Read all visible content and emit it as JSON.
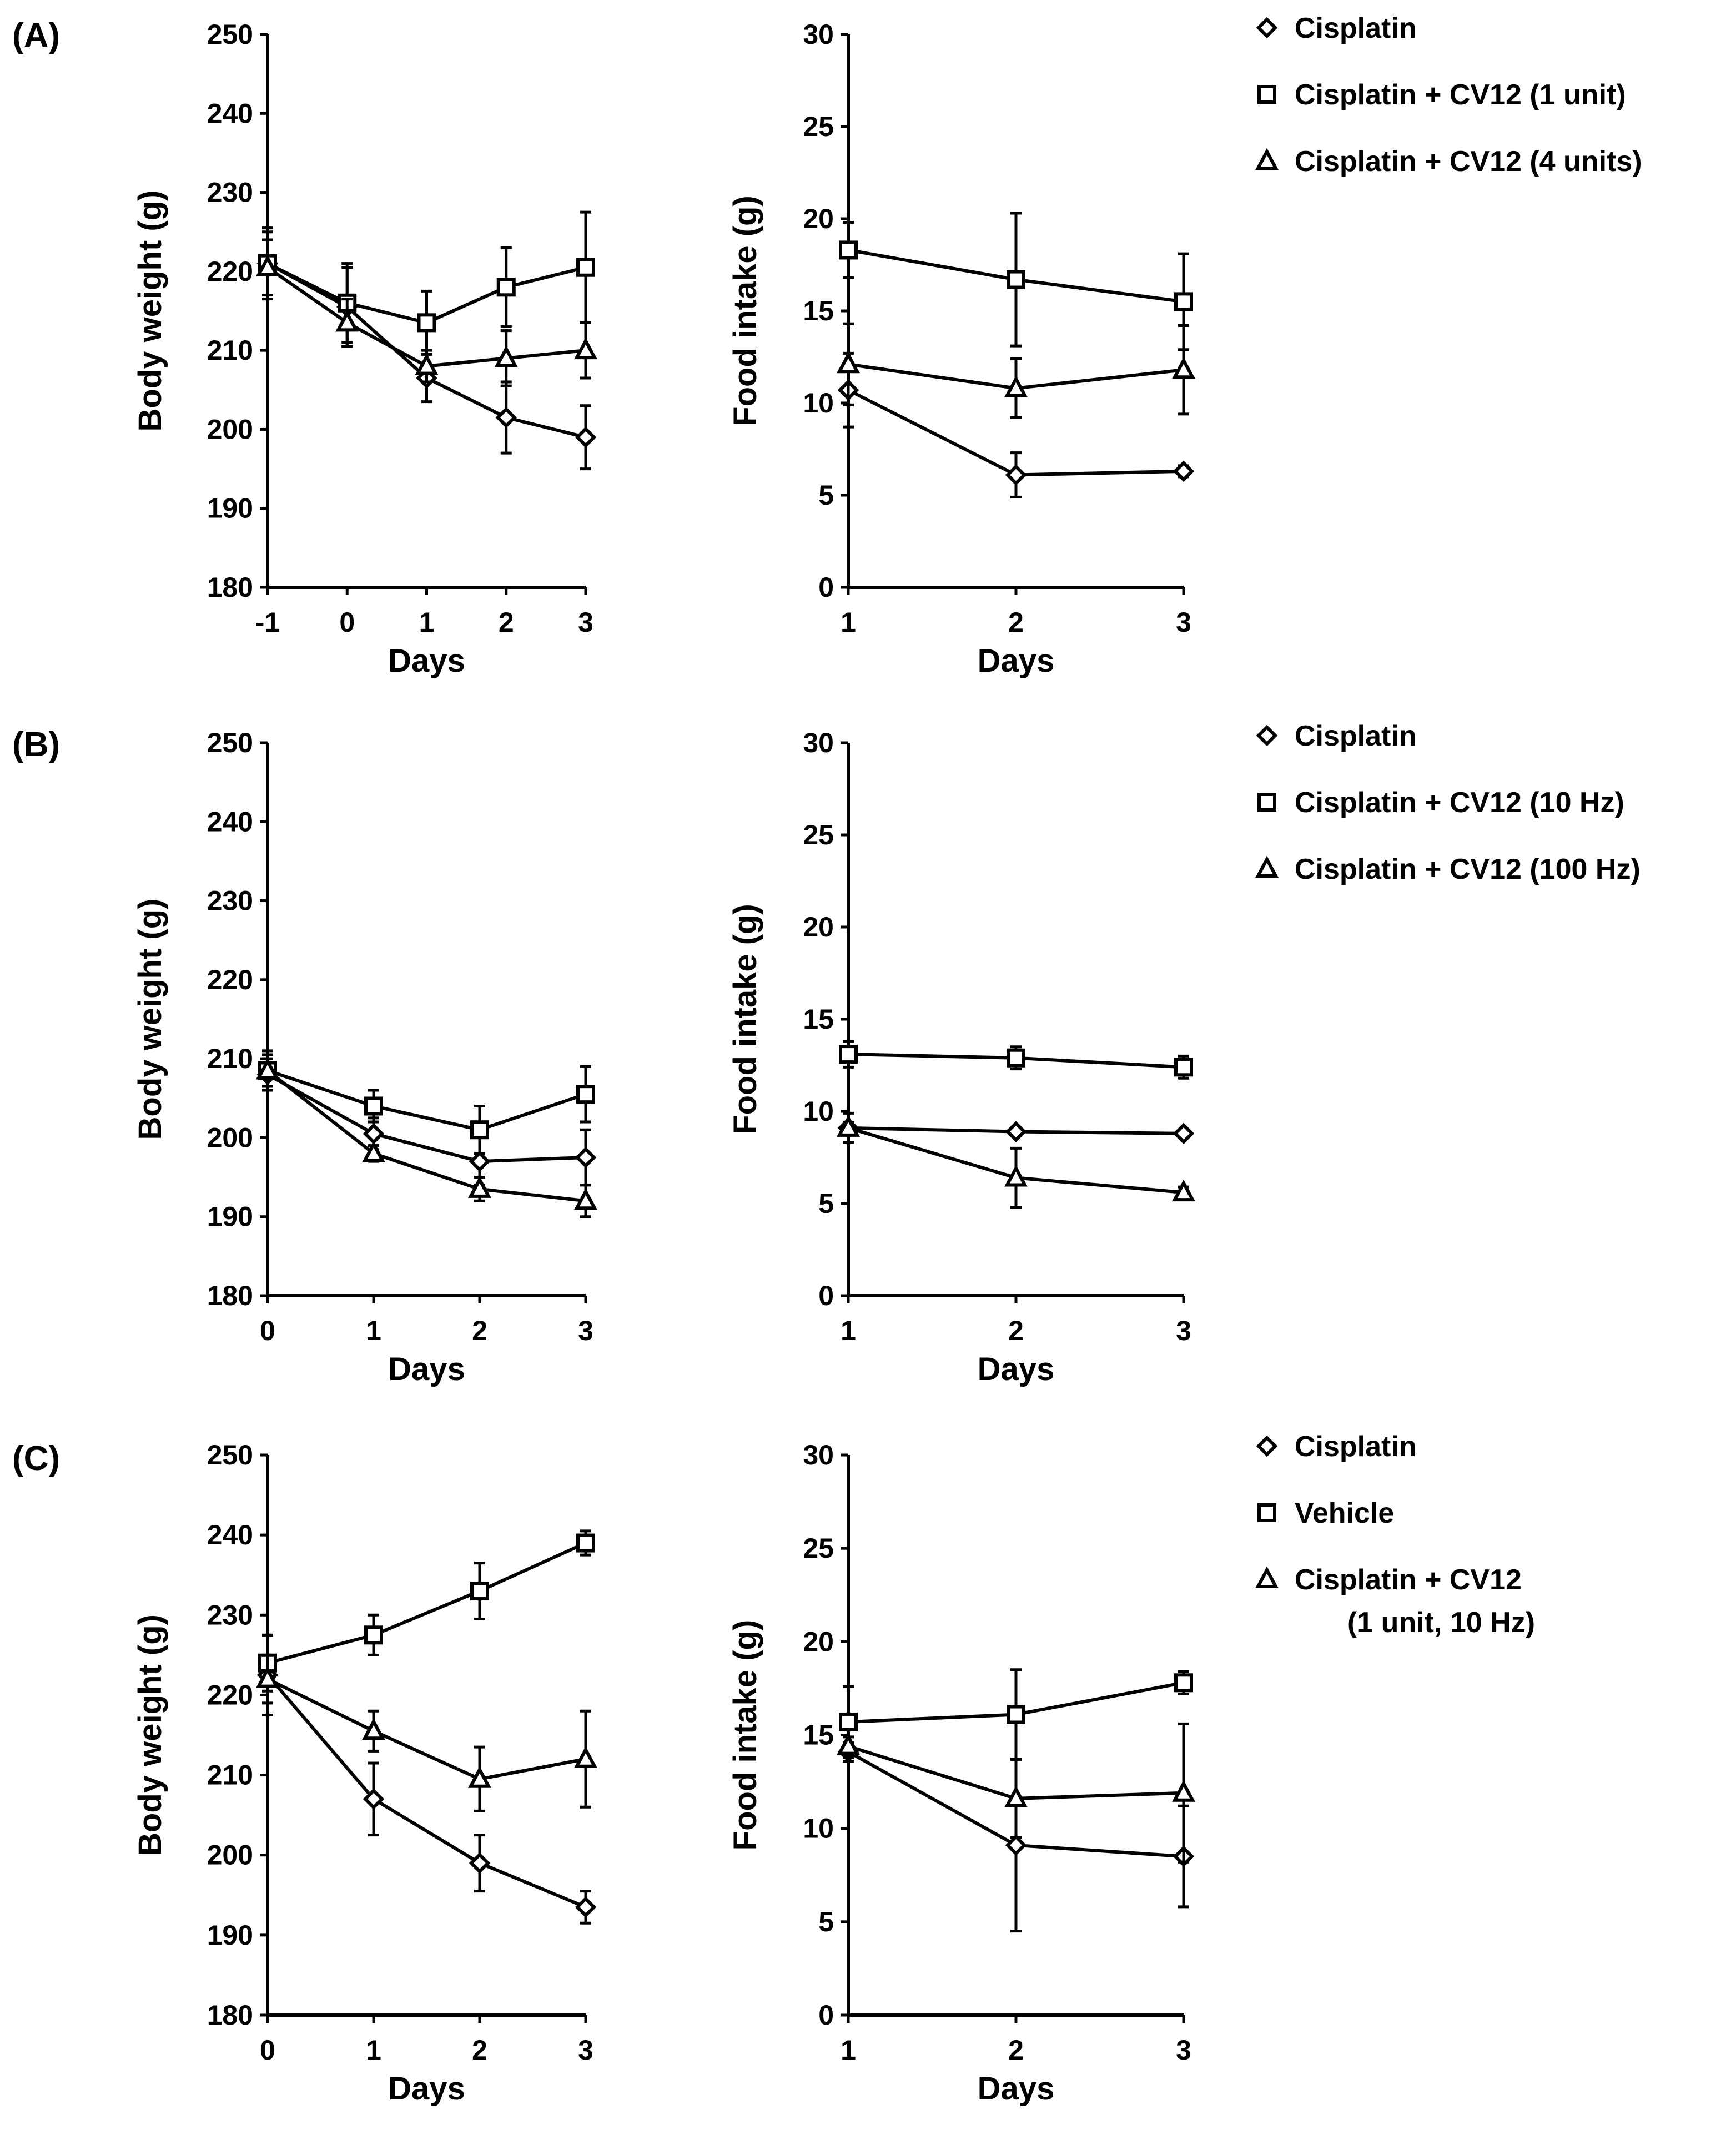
{
  "chart_data": [
    {
      "panel": "(A)",
      "charts": [
        {
          "type": "line",
          "xlabel": "Days",
          "ylabel": "Body weight (g)",
          "ylim": [
            180,
            250
          ],
          "yticks": [
            180,
            190,
            200,
            210,
            220,
            230,
            240,
            250
          ],
          "x": [
            -1,
            0,
            1,
            2,
            3
          ],
          "xtick_labels": [
            "-1",
            "0",
            "1",
            "2",
            "3"
          ],
          "series": [
            {
              "name": "Cisplatin",
              "marker": "diamond",
              "values": [
                221,
                215.5,
                206.5,
                201.5,
                199
              ],
              "errors": [
                4,
                5,
                3,
                4.5,
                4
              ]
            },
            {
              "name": "Cisplatin + CV12 (1 unit)",
              "marker": "square",
              "values": [
                221,
                216,
                213.5,
                218,
                220.5
              ],
              "errors": [
                4.5,
                5,
                4,
                5,
                7
              ]
            },
            {
              "name": "Cisplatin + CV12 (4 units)",
              "marker": "triangle",
              "values": [
                220.5,
                213.5,
                208,
                209,
                210
              ],
              "errors": [
                3.5,
                3,
                2,
                3.5,
                3.5
              ]
            }
          ]
        },
        {
          "type": "line",
          "xlabel": "Days",
          "ylabel": "Food intake (g)",
          "ylim": [
            0,
            30
          ],
          "yticks": [
            0,
            5,
            10,
            15,
            20,
            25,
            30
          ],
          "x": [
            1,
            2,
            3
          ],
          "xtick_labels": [
            "1",
            "2",
            "3"
          ],
          "series": [
            {
              "name": "Cisplatin",
              "marker": "diamond",
              "values": [
                10.7,
                6.1,
                6.3
              ],
              "errors": [
                2,
                1.2,
                0.3
              ]
            },
            {
              "name": "Cisplatin + CV12 (1 unit)",
              "marker": "square",
              "values": [
                18.3,
                16.7,
                15.5
              ],
              "errors": [
                1.5,
                3.6,
                2.6
              ]
            },
            {
              "name": "Cisplatin + CV12 (4 units)",
              "marker": "triangle",
              "values": [
                12.1,
                10.8,
                11.8
              ],
              "errors": [
                2.2,
                1.6,
                2.4
              ]
            }
          ]
        }
      ]
    },
    {
      "panel": "(B)",
      "charts": [
        {
          "type": "line",
          "xlabel": "Days",
          "ylabel": "Body weight (g)",
          "ylim": [
            180,
            250
          ],
          "yticks": [
            180,
            190,
            200,
            210,
            220,
            230,
            240,
            250
          ],
          "x": [
            0,
            1,
            2,
            3
          ],
          "xtick_labels": [
            "0",
            "1",
            "2",
            "3"
          ],
          "series": [
            {
              "name": "Cisplatin",
              "marker": "diamond",
              "values": [
                208,
                200.5,
                197,
                197.5
              ],
              "errors": [
                2,
                2,
                3,
                3.5
              ]
            },
            {
              "name": "Cisplatin + CV12 (10 Hz)",
              "marker": "square",
              "values": [
                208.5,
                204,
                201,
                205.5
              ],
              "errors": [
                2.5,
                2,
                3,
                3.5
              ]
            },
            {
              "name": "Cisplatin + CV12 (100 Hz)",
              "marker": "triangle",
              "values": [
                208.5,
                198,
                193.5,
                192
              ],
              "errors": [
                2,
                1,
                1.5,
                2
              ]
            }
          ]
        },
        {
          "type": "line",
          "xlabel": "Days",
          "ylabel": "Food intake (g)",
          "ylim": [
            0,
            30
          ],
          "yticks": [
            0,
            5,
            10,
            15,
            20,
            25,
            30
          ],
          "x": [
            1,
            2,
            3
          ],
          "xtick_labels": [
            "1",
            "2",
            "3"
          ],
          "series": [
            {
              "name": "Cisplatin",
              "marker": "diamond",
              "values": [
                9.1,
                8.9,
                8.8
              ],
              "errors": [
                0.3,
                0.2,
                0.2
              ]
            },
            {
              "name": "Cisplatin + CV12 (10 Hz)",
              "marker": "square",
              "values": [
                13.1,
                12.9,
                12.4
              ],
              "errors": [
                0.7,
                0.6,
                0.6
              ]
            },
            {
              "name": "Cisplatin + CV12 (100 Hz)",
              "marker": "triangle",
              "values": [
                9.1,
                6.4,
                5.6
              ],
              "errors": [
                0.8,
                1.6,
                0.3
              ]
            }
          ]
        }
      ]
    },
    {
      "panel": "(C)",
      "charts": [
        {
          "type": "line",
          "xlabel": "Days",
          "ylabel": "Body weight (g)",
          "ylim": [
            180,
            250
          ],
          "yticks": [
            180,
            190,
            200,
            210,
            220,
            230,
            240,
            250
          ],
          "x": [
            0,
            1,
            2,
            3
          ],
          "xtick_labels": [
            "0",
            "1",
            "2",
            "3"
          ],
          "series": [
            {
              "name": "Cisplatin",
              "marker": "diamond",
              "values": [
                222.5,
                207,
                199,
                193.5
              ],
              "errors": [
                5,
                4.5,
                3.5,
                2
              ]
            },
            {
              "name": "Vehicle",
              "marker": "square",
              "values": [
                224,
                227.5,
                233,
                239
              ],
              "errors": [
                3.5,
                2.5,
                3.5,
                1.5
              ]
            },
            {
              "name": "Cisplatin + CV12 (1 unit, 10 Hz)",
              "marker": "triangle",
              "values": [
                222,
                215.5,
                209.5,
                212
              ],
              "errors": [
                3,
                2.5,
                4,
                6
              ]
            }
          ]
        },
        {
          "type": "line",
          "xlabel": "Days",
          "ylabel": "Food intake (g)",
          "ylim": [
            0,
            30
          ],
          "yticks": [
            0,
            5,
            10,
            15,
            20,
            25,
            30
          ],
          "x": [
            1,
            2,
            3
          ],
          "xtick_labels": [
            "1",
            "2",
            "3"
          ],
          "series": [
            {
              "name": "Cisplatin",
              "marker": "diamond",
              "values": [
                14.1,
                9.1,
                8.5
              ],
              "errors": [
                0.5,
                4.6,
                2.7
              ]
            },
            {
              "name": "Vehicle",
              "marker": "square",
              "values": [
                15.7,
                16.1,
                17.8
              ],
              "errors": [
                1.9,
                2.4,
                0.6
              ]
            },
            {
              "name": "Cisplatin + CV12 (1 unit, 10 Hz)",
              "marker": "triangle",
              "values": [
                14.4,
                11.6,
                11.9
              ],
              "errors": [
                0.5,
                2.1,
                3.7
              ]
            }
          ]
        }
      ]
    }
  ],
  "legends": [
    {
      "panel": "(A)",
      "items": [
        {
          "marker": "diamond",
          "lines": [
            "Cisplatin"
          ]
        },
        {
          "marker": "square",
          "lines": [
            "Cisplatin + CV12 (1 unit)"
          ]
        },
        {
          "marker": "triangle",
          "lines": [
            "Cisplatin + CV12 (4 units)"
          ]
        }
      ]
    },
    {
      "panel": "(B)",
      "items": [
        {
          "marker": "diamond",
          "lines": [
            "Cisplatin"
          ]
        },
        {
          "marker": "square",
          "lines": [
            "Cisplatin + CV12 (10 Hz)"
          ]
        },
        {
          "marker": "triangle",
          "lines": [
            "Cisplatin + CV12 (100 Hz)"
          ]
        }
      ]
    },
    {
      "panel": "(C)",
      "items": [
        {
          "marker": "diamond",
          "lines": [
            "Cisplatin"
          ]
        },
        {
          "marker": "square",
          "lines": [
            "Vehicle"
          ]
        },
        {
          "marker": "triangle",
          "lines": [
            "Cisplatin + CV12",
            "(1 unit, 10 Hz)"
          ]
        }
      ]
    }
  ]
}
